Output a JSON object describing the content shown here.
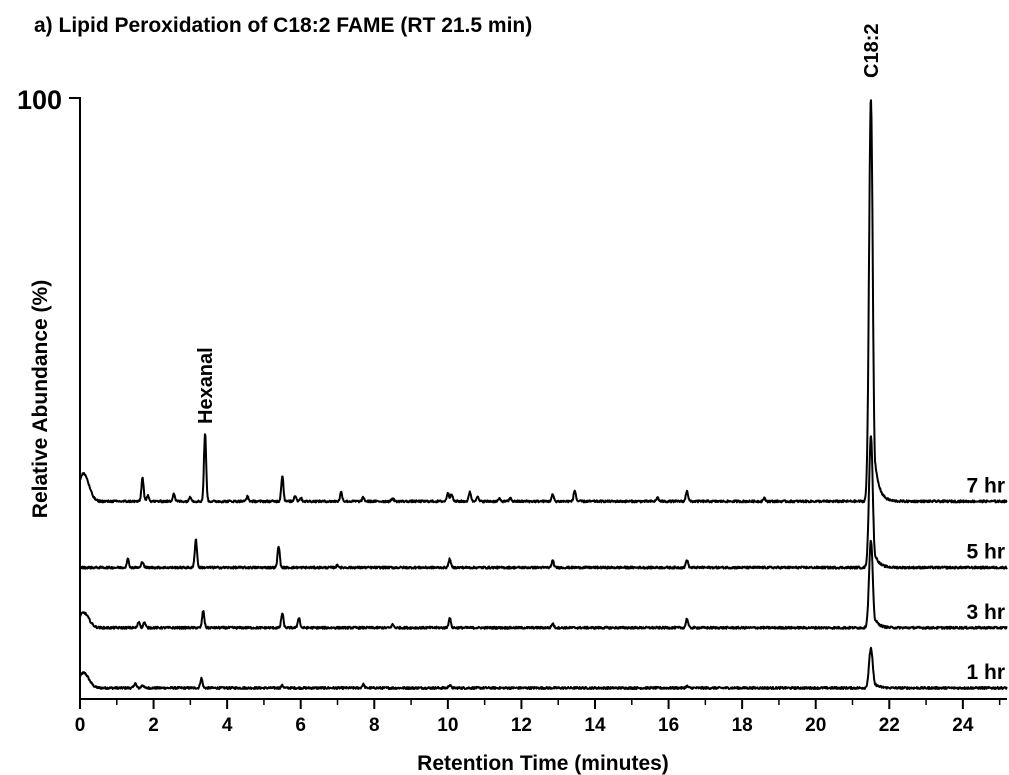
{
  "chart_data": {
    "type": "line",
    "title": "a) Lipid Peroxidation of C18:2 FAME (RT 21.5 min)",
    "xlabel": "Retention Time (minutes)",
    "ylabel": "Relative Abundance (%)",
    "xlim": [
      0,
      25.2
    ],
    "xticks": [
      "0",
      "2",
      "4",
      "6",
      "8",
      "10",
      "12",
      "14",
      "16",
      "18",
      "20",
      "22",
      "24"
    ],
    "y_top_label": "100",
    "ylim": [
      0,
      100
    ],
    "grid": false,
    "legend": "none",
    "annotations": [
      {
        "text": "Hexanal",
        "x": 3.4
      },
      {
        "text": "C18:2",
        "x": 21.5
      }
    ],
    "series": [
      {
        "name": "1 hr",
        "baseline": 2,
        "peaks": [
          [
            0.1,
            2.5
          ],
          [
            1.5,
            0.8
          ],
          [
            1.7,
            0.5
          ],
          [
            3.3,
            1.6
          ],
          [
            5.5,
            0.4
          ],
          [
            7.7,
            0.6
          ],
          [
            10.05,
            0.5
          ],
          [
            16.5,
            0.3
          ],
          [
            21.5,
            6.6
          ]
        ]
      },
      {
        "name": "3 hr",
        "baseline": 12,
        "peaks": [
          [
            0.1,
            2.5
          ],
          [
            1.6,
            1.0
          ],
          [
            1.75,
            0.9
          ],
          [
            3.35,
            2.8
          ],
          [
            5.5,
            2.4
          ],
          [
            5.95,
            1.7
          ],
          [
            8.5,
            0.5
          ],
          [
            10.05,
            1.6
          ],
          [
            12.85,
            0.7
          ],
          [
            16.5,
            1.5
          ],
          [
            21.5,
            14.5
          ]
        ]
      },
      {
        "name": "5 hr",
        "baseline": 22,
        "peaks": [
          [
            1.3,
            1.4
          ],
          [
            1.7,
            1.0
          ],
          [
            3.15,
            4.7
          ],
          [
            5.4,
            3.6
          ],
          [
            7.0,
            0.4
          ],
          [
            10.05,
            1.4
          ],
          [
            12.85,
            1.1
          ],
          [
            16.5,
            1.3
          ],
          [
            21.5,
            22.0
          ]
        ]
      },
      {
        "name": "7 hr",
        "baseline": 33,
        "peaks": [
          [
            0.1,
            4.6
          ],
          [
            1.7,
            3.9
          ],
          [
            1.85,
            1.0
          ],
          [
            2.55,
            1.3
          ],
          [
            3.0,
            0.8
          ],
          [
            3.4,
            11.2
          ],
          [
            4.55,
            0.8
          ],
          [
            5.5,
            4.2
          ],
          [
            5.85,
            1.0
          ],
          [
            6.0,
            0.6
          ],
          [
            7.1,
            1.5
          ],
          [
            7.7,
            0.6
          ],
          [
            8.5,
            0.5
          ],
          [
            10.0,
            1.4
          ],
          [
            10.1,
            1.3
          ],
          [
            10.6,
            1.6
          ],
          [
            10.8,
            0.8
          ],
          [
            11.4,
            0.4
          ],
          [
            11.7,
            0.5
          ],
          [
            12.85,
            1.1
          ],
          [
            13.45,
            1.8
          ],
          [
            15.7,
            0.6
          ],
          [
            16.5,
            1.8
          ],
          [
            18.6,
            0.5
          ],
          [
            21.5,
            67.0
          ]
        ]
      }
    ]
  }
}
